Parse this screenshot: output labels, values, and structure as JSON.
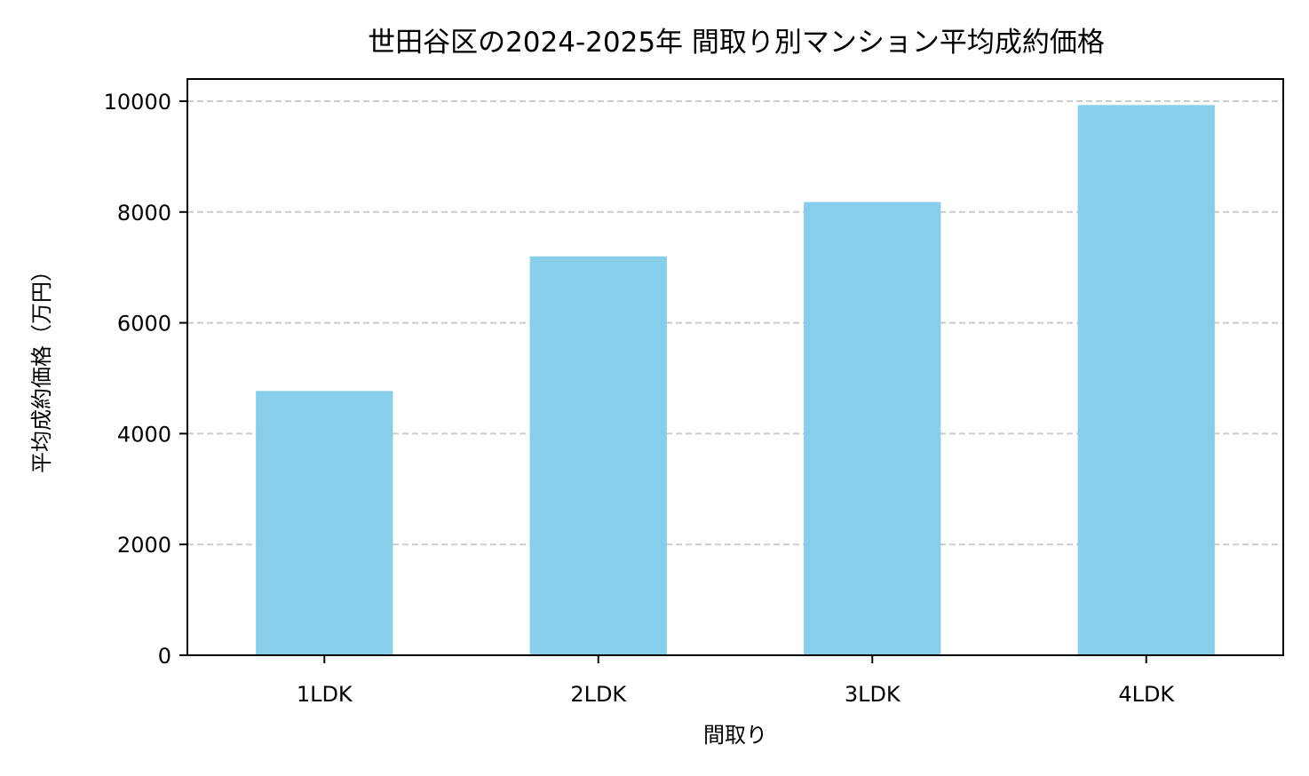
{
  "chart_data": {
    "type": "bar",
    "title": "世田谷区の2024-2025年 間取り別マンション平均成約価格",
    "xlabel": "間取り",
    "ylabel": "平均成約価格（万円）",
    "categories": [
      "1LDK",
      "2LDK",
      "3LDK",
      "4LDK"
    ],
    "values": [
      4770,
      7200,
      8180,
      9930
    ],
    "ylim": [
      0,
      10400
    ],
    "yticks": [
      "0",
      "2000",
      "4000",
      "6000",
      "8000",
      "10000"
    ],
    "ytick_values": [
      0,
      2000,
      4000,
      6000,
      8000,
      10000
    ],
    "grid": "y-dashed",
    "colors": {
      "bar": "#87ceeb",
      "grid": "#cccccc",
      "axis": "#000000"
    }
  }
}
